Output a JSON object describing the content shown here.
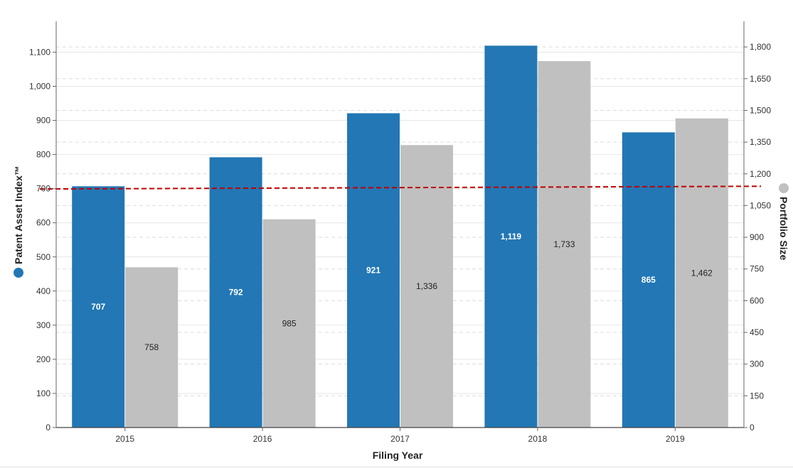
{
  "chart_data": {
    "type": "bar",
    "categories": [
      "2015",
      "2016",
      "2017",
      "2018",
      "2019"
    ],
    "series": [
      {
        "name": "Patent Asset Index™",
        "axis": "left",
        "color": "#2277b4",
        "label_color": "#ffffff",
        "values": [
          707,
          792,
          921,
          1119,
          865
        ],
        "labels": [
          "707",
          "792",
          "921",
          "1,119",
          "865"
        ]
      },
      {
        "name": "Portfolio Size",
        "axis": "right",
        "color": "#c0c0c0",
        "label_color": "#222222",
        "values": [
          758,
          985,
          1336,
          1733,
          1462
        ],
        "labels": [
          "758",
          "985",
          "1,336",
          "1,733",
          "1,462"
        ]
      }
    ],
    "xlabel": "Filing Year",
    "ylabel_left": "Patent Asset Index™",
    "ylabel_right": "Portfolio Size",
    "ylim_left": [
      0,
      1150
    ],
    "ylim_right": [
      0,
      1850
    ],
    "yticks_left": [
      0,
      100,
      200,
      300,
      400,
      500,
      600,
      700,
      800,
      900,
      1000,
      1100
    ],
    "yticks_left_labels": [
      "0",
      "100",
      "200",
      "300",
      "400",
      "500",
      "600",
      "700",
      "800",
      "900",
      "1,000",
      "1,100"
    ],
    "yticks_right": [
      0,
      150,
      300,
      450,
      600,
      750,
      900,
      1050,
      1200,
      1350,
      1500,
      1650,
      1800
    ],
    "yticks_right_labels": [
      "0",
      "150",
      "300",
      "450",
      "600",
      "750",
      "900",
      "1,050",
      "1,200",
      "1,350",
      "1,500",
      "1,650",
      "1,800"
    ],
    "reference_line": {
      "axis": "left",
      "value_start": 699,
      "value_end": 707,
      "color": "#c00000",
      "style": "dashed"
    },
    "grid": true,
    "legend": "axis-titles"
  }
}
